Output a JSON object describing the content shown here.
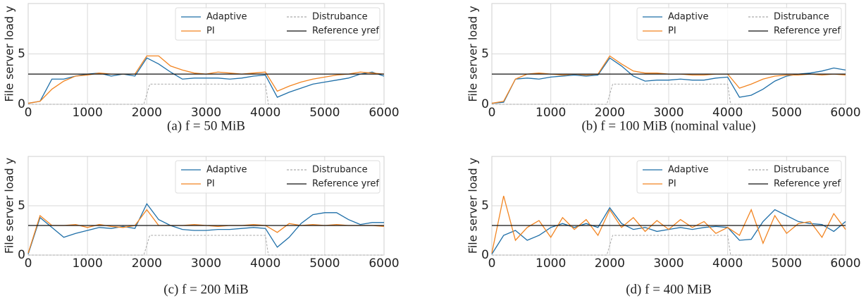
{
  "chart_data": [
    {
      "type": "line",
      "caption": "(a) f = 50 MiB",
      "ylabel": "File server load y",
      "x": [
        0,
        200,
        400,
        600,
        800,
        1000,
        1200,
        1400,
        1600,
        1800,
        2000,
        2200,
        2400,
        2600,
        2800,
        3000,
        3200,
        3400,
        3600,
        3800,
        4000,
        4200,
        4400,
        4600,
        4800,
        5000,
        5200,
        5400,
        5600,
        5800,
        6000
      ],
      "series": [
        {
          "name": "Adaptive",
          "color": "#1f6fa8",
          "values": [
            0.1,
            0.3,
            2.5,
            2.5,
            2.8,
            3.0,
            3.1,
            2.8,
            3.0,
            2.8,
            4.6,
            4.0,
            3.2,
            2.5,
            2.6,
            2.6,
            2.6,
            2.5,
            2.6,
            2.8,
            2.9,
            0.7,
            1.2,
            1.6,
            2.0,
            2.2,
            2.4,
            2.6,
            3.0,
            3.2,
            2.8
          ]
        },
        {
          "name": "PI",
          "color": "#f28522",
          "values": [
            0.1,
            0.3,
            1.5,
            2.3,
            2.8,
            2.9,
            3.1,
            3.0,
            3.0,
            3.0,
            4.8,
            4.8,
            3.8,
            3.4,
            3.1,
            3.0,
            3.2,
            3.1,
            3.0,
            3.1,
            3.2,
            1.3,
            1.8,
            2.2,
            2.5,
            2.7,
            2.9,
            3.0,
            3.2,
            3.1,
            3.0
          ]
        },
        {
          "name": "Distrubance",
          "color": "#aaaaaa",
          "style": "dashed",
          "x": [
            0,
            1950,
            2050,
            4000,
            4050,
            6000
          ],
          "values": [
            0,
            0,
            2,
            2,
            0,
            0
          ]
        },
        {
          "name": "Reference yref",
          "color": "#111111",
          "x": [
            0,
            6000
          ],
          "values": [
            3,
            3
          ]
        }
      ],
      "xlim": [
        0,
        6000
      ],
      "xticks": [
        0,
        1000,
        2000,
        3000,
        4000,
        5000,
        6000
      ],
      "ylim": [
        0,
        10
      ],
      "yticks": [
        0,
        5
      ],
      "grid": true,
      "legend": "upper right"
    },
    {
      "type": "line",
      "caption": "(b) f = 100 MiB (nominal value)",
      "ylabel": "File server load y",
      "x": [
        0,
        200,
        400,
        600,
        800,
        1000,
        1200,
        1400,
        1600,
        1800,
        2000,
        2200,
        2400,
        2600,
        2800,
        3000,
        3200,
        3400,
        3600,
        3800,
        4000,
        4200,
        4400,
        4600,
        4800,
        5000,
        5200,
        5400,
        5600,
        5800,
        6000
      ],
      "series": [
        {
          "name": "Adaptive",
          "color": "#1f6fa8",
          "values": [
            0.1,
            0.2,
            2.5,
            2.6,
            2.5,
            2.7,
            2.8,
            2.9,
            2.8,
            2.9,
            4.6,
            3.8,
            2.8,
            2.3,
            2.4,
            2.4,
            2.5,
            2.4,
            2.4,
            2.6,
            2.7,
            0.7,
            0.9,
            1.5,
            2.3,
            2.8,
            3.0,
            3.1,
            3.3,
            3.6,
            3.4
          ]
        },
        {
          "name": "PI",
          "color": "#f28522",
          "values": [
            0.1,
            0.3,
            2.5,
            3.0,
            3.1,
            3.0,
            2.9,
            3.0,
            2.9,
            3.0,
            4.8,
            4.0,
            3.3,
            3.1,
            3.1,
            3.0,
            3.0,
            2.9,
            2.9,
            3.0,
            3.0,
            1.6,
            2.0,
            2.5,
            2.8,
            2.9,
            2.9,
            3.0,
            2.9,
            3.0,
            2.9
          ]
        },
        {
          "name": "Distrubance",
          "color": "#aaaaaa",
          "style": "dashed",
          "x": [
            0,
            1950,
            2050,
            4000,
            4050,
            6000
          ],
          "values": [
            0,
            0,
            2,
            2,
            0,
            0
          ]
        },
        {
          "name": "Reference yref",
          "color": "#111111",
          "x": [
            0,
            6000
          ],
          "values": [
            3,
            3
          ]
        }
      ],
      "xlim": [
        0,
        6000
      ],
      "xticks": [
        0,
        1000,
        2000,
        3000,
        4000,
        5000,
        6000
      ],
      "ylim": [
        0,
        10
      ],
      "yticks": [
        0,
        5
      ],
      "grid": true,
      "legend": "upper right"
    },
    {
      "type": "line",
      "caption": "(c) f = 200 MiB",
      "ylabel": "File server load y",
      "x": [
        0,
        200,
        400,
        600,
        800,
        1000,
        1200,
        1400,
        1600,
        1800,
        2000,
        2200,
        2400,
        2600,
        2800,
        3000,
        3200,
        3400,
        3600,
        3800,
        4000,
        4200,
        4400,
        4600,
        4800,
        5000,
        5200,
        5400,
        5600,
        5800,
        6000
      ],
      "series": [
        {
          "name": "Adaptive",
          "color": "#1f6fa8",
          "values": [
            0.1,
            3.8,
            2.8,
            1.8,
            2.2,
            2.5,
            2.8,
            2.7,
            2.9,
            2.7,
            5.2,
            3.6,
            3.0,
            2.6,
            2.5,
            2.5,
            2.6,
            2.6,
            2.7,
            2.8,
            2.7,
            0.8,
            1.8,
            3.2,
            4.1,
            4.3,
            4.3,
            3.6,
            3.1,
            3.3,
            3.3
          ]
        },
        {
          "name": "PI",
          "color": "#f28522",
          "values": [
            0.2,
            4.0,
            3.0,
            3.0,
            3.1,
            2.8,
            3.1,
            2.9,
            2.8,
            3.0,
            4.6,
            3.0,
            3.0,
            3.0,
            3.1,
            3.0,
            2.9,
            3.0,
            3.0,
            3.1,
            3.0,
            2.3,
            3.2,
            3.0,
            3.1,
            3.0,
            3.1,
            3.0,
            3.0,
            3.0,
            2.9
          ]
        },
        {
          "name": "Distrubance",
          "color": "#aaaaaa",
          "style": "dashed",
          "x": [
            0,
            1950,
            2050,
            4000,
            4050,
            6000
          ],
          "values": [
            0,
            0,
            2,
            2,
            0,
            0
          ]
        },
        {
          "name": "Reference yref",
          "color": "#111111",
          "x": [
            0,
            6000
          ],
          "values": [
            3,
            3
          ]
        }
      ],
      "xlim": [
        0,
        6000
      ],
      "xticks": [
        0,
        1000,
        2000,
        3000,
        4000,
        5000,
        6000
      ],
      "ylim": [
        0,
        10
      ],
      "yticks": [
        0,
        5
      ],
      "grid": true,
      "legend": "upper right"
    },
    {
      "type": "line",
      "caption": "(d) f = 400 MiB",
      "ylabel": "File server load y",
      "x": [
        0,
        200,
        400,
        600,
        800,
        1000,
        1200,
        1400,
        1600,
        1800,
        2000,
        2200,
        2400,
        2600,
        2800,
        3000,
        3200,
        3400,
        3600,
        3800,
        4000,
        4200,
        4400,
        4600,
        4800,
        5000,
        5200,
        5400,
        5600,
        5800,
        6000
      ],
      "series": [
        {
          "name": "Adaptive",
          "color": "#1f6fa8",
          "values": [
            0.1,
            2.0,
            2.5,
            1.5,
            2.0,
            2.8,
            3.2,
            2.8,
            3.2,
            2.8,
            4.8,
            3.2,
            2.6,
            2.8,
            2.4,
            2.6,
            2.8,
            2.6,
            2.8,
            2.9,
            2.8,
            1.5,
            1.6,
            3.4,
            4.6,
            4.0,
            3.4,
            3.2,
            3.1,
            2.4,
            3.4
          ]
        },
        {
          "name": "PI",
          "color": "#f28522",
          "values": [
            0.2,
            6.0,
            1.5,
            2.8,
            3.5,
            1.8,
            3.8,
            2.6,
            3.6,
            2.0,
            4.6,
            2.8,
            3.8,
            2.4,
            3.5,
            2.6,
            3.6,
            2.8,
            3.4,
            2.2,
            2.8,
            2.0,
            4.6,
            1.2,
            4.0,
            2.2,
            3.2,
            3.4,
            1.8,
            4.2,
            2.6
          ]
        },
        {
          "name": "Distrubance",
          "color": "#aaaaaa",
          "style": "dashed",
          "x": [
            0,
            1950,
            2050,
            4000,
            4050,
            6000
          ],
          "values": [
            0,
            0,
            2,
            2,
            0,
            0
          ]
        },
        {
          "name": "Reference yref",
          "color": "#111111",
          "x": [
            0,
            6000
          ],
          "values": [
            3,
            3
          ]
        }
      ],
      "xlim": [
        0,
        6000
      ],
      "xticks": [
        0,
        1000,
        2000,
        3000,
        4000,
        5000,
        6000
      ],
      "ylim": [
        0,
        10
      ],
      "yticks": [
        0,
        5
      ],
      "grid": true,
      "legend": "upper right"
    }
  ]
}
